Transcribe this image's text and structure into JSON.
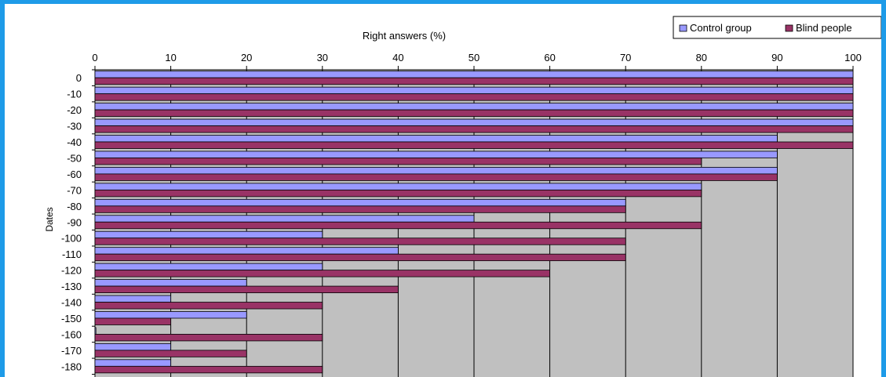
{
  "chart_data": {
    "type": "bar",
    "orientation": "horizontal",
    "title": "",
    "xlabel": "Right answers (%)",
    "ylabel": "Dates",
    "xlim": [
      0,
      100
    ],
    "x_ticks": [
      "0",
      "10",
      "20",
      "30",
      "40",
      "50",
      "60",
      "70",
      "80",
      "90",
      "100"
    ],
    "categories": [
      "0",
      "-10",
      "-20",
      "-30",
      "-40",
      "-50",
      "-60",
      "-70",
      "-80",
      "-90",
      "-100",
      "-110",
      "-120",
      "-130",
      "-140",
      "-150",
      "-160",
      "-170",
      "-180"
    ],
    "series": [
      {
        "name": "Control group",
        "color": "#9999ff",
        "values": [
          100,
          100,
          100,
          100,
          90,
          90,
          90,
          80,
          70,
          50,
          30,
          40,
          30,
          20,
          10,
          20,
          0,
          10,
          10
        ]
      },
      {
        "name": "Blind people",
        "color": "#993366",
        "values": [
          100,
          100,
          100,
          100,
          100,
          80,
          90,
          80,
          70,
          80,
          70,
          70,
          60,
          40,
          30,
          10,
          30,
          20,
          30
        ]
      }
    ],
    "plot_background": "#c0c0c0",
    "grid": true,
    "legend": "top-right"
  }
}
